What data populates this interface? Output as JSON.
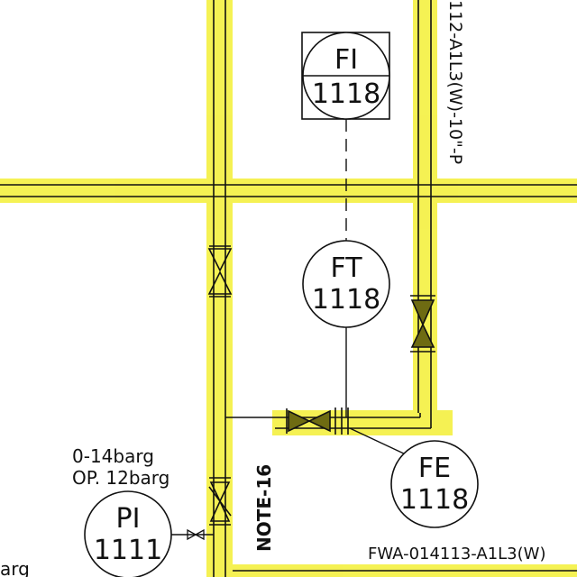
{
  "colors": {
    "highlight": "#f4f03c",
    "line": "#111111",
    "background": "#ffffff"
  },
  "instruments": {
    "fi": {
      "func": "FI",
      "num": "1118"
    },
    "ft": {
      "func": "FT",
      "num": "1118"
    },
    "fe": {
      "func": "FE",
      "num": "1118"
    },
    "pi": {
      "func": "PI",
      "num": "1111"
    }
  },
  "labels": {
    "line_top_right": "112-A1L3(W)-10\"-P",
    "line_bottom": "FWA-014113-A1L3(W)",
    "note": "NOTE-16",
    "pi_range": "0-14barg",
    "pi_op": "OP. 12barg",
    "left_fragment": "arg"
  },
  "icons": [
    "gate-valve-icon",
    "check-valve-icon",
    "orifice-flange-icon",
    "instrument-bubble-icon",
    "panel-instrument-icon"
  ]
}
